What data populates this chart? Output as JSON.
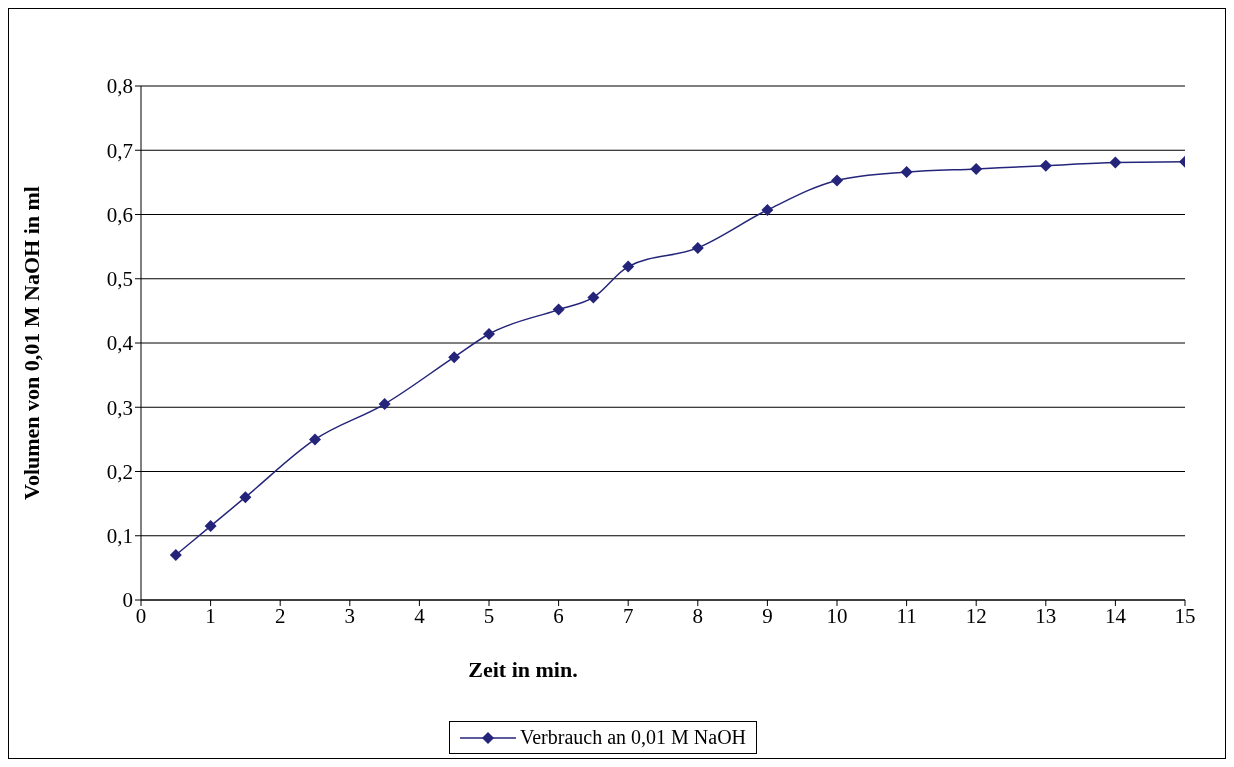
{
  "chart_data": {
    "type": "line",
    "xlabel": "Zeit in min.",
    "ylabel": "Volumen von 0,01 M NaOH in ml",
    "x": [
      0.5,
      1,
      1.5,
      2.5,
      3.5,
      4.5,
      5,
      6,
      6.5,
      7,
      8,
      9,
      10,
      11,
      12,
      13,
      14,
      15
    ],
    "series": [
      {
        "name": "Verbrauch an 0,01 M NaOH",
        "color": "#24247a",
        "values": [
          0.07,
          0.115,
          0.16,
          0.25,
          0.305,
          0.378,
          0.414,
          0.452,
          0.471,
          0.519,
          0.548,
          0.607,
          0.653,
          0.666,
          0.671,
          0.676,
          0.681,
          0.682
        ]
      }
    ],
    "xlim": [
      0,
      15
    ],
    "xticks": [
      0,
      1,
      2,
      3,
      4,
      5,
      6,
      7,
      8,
      9,
      10,
      11,
      12,
      13,
      14,
      15
    ],
    "ylim": [
      0,
      0.8
    ],
    "yticks": [
      0,
      {
        "value": 0.1,
        "label": "0,1"
      },
      {
        "value": 0.2,
        "label": "0,2"
      },
      {
        "value": 0.3,
        "label": "0,3"
      },
      {
        "value": 0.4,
        "label": "0,4"
      },
      {
        "value": 0.5,
        "label": "0,5"
      },
      {
        "value": 0.6,
        "label": "0,6"
      },
      {
        "value": 0.7,
        "label": "0,7"
      },
      {
        "value": 0.8,
        "label": "0,8"
      }
    ],
    "grid": "y",
    "legend": "bottom",
    "marker": "diamond",
    "line_style": "solid"
  }
}
